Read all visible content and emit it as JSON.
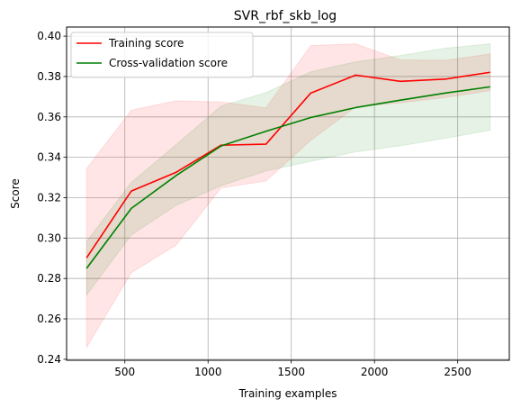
{
  "chart_data": {
    "type": "line",
    "title": "SVR_rbf_skb_log",
    "xlabel": "Training examples",
    "ylabel": "Score",
    "xlim": [
      150,
      2810
    ],
    "ylim": [
      0.2395,
      0.4045
    ],
    "xticks": [
      500,
      1000,
      1500,
      2000,
      2500
    ],
    "yticks": [
      0.24,
      0.26,
      0.28,
      0.3,
      0.32,
      0.34,
      0.36,
      0.38,
      0.4
    ],
    "xtick_labels": [
      "500",
      "1000",
      "1500",
      "2000",
      "2500"
    ],
    "ytick_labels": [
      "0.24",
      "0.26",
      "0.28",
      "0.30",
      "0.32",
      "0.34",
      "0.36",
      "0.38",
      "0.40"
    ],
    "grid": true,
    "legend_position": "upper-left",
    "x": [
      270,
      539,
      809,
      1078,
      1348,
      1617,
      1887,
      2156,
      2426,
      2695
    ],
    "series": [
      {
        "name": "Training score",
        "color": "#ff0000",
        "band_color": "#ff0000",
        "values": [
          0.2902,
          0.3233,
          0.3326,
          0.346,
          0.3465,
          0.3718,
          0.3807,
          0.3776,
          0.3787,
          0.3821
        ],
        "upper": [
          0.3344,
          0.3633,
          0.368,
          0.3674,
          0.3645,
          0.3953,
          0.3962,
          0.3882,
          0.388,
          0.3912
        ],
        "lower": [
          0.2458,
          0.2828,
          0.2966,
          0.3248,
          0.3283,
          0.3484,
          0.365,
          0.367,
          0.3696,
          0.373
        ]
      },
      {
        "name": "Cross-validation score",
        "color": "#008000",
        "band_color": "#008000",
        "values": [
          0.285,
          0.3147,
          0.331,
          0.3456,
          0.3529,
          0.3597,
          0.3646,
          0.3683,
          0.3718,
          0.3749
        ],
        "upper": [
          0.2983,
          0.3276,
          0.3463,
          0.3654,
          0.372,
          0.3823,
          0.3873,
          0.3904,
          0.394,
          0.3962
        ],
        "lower": [
          0.2718,
          0.3015,
          0.3162,
          0.3259,
          0.3332,
          0.338,
          0.3427,
          0.3457,
          0.3494,
          0.3534
        ]
      }
    ]
  }
}
